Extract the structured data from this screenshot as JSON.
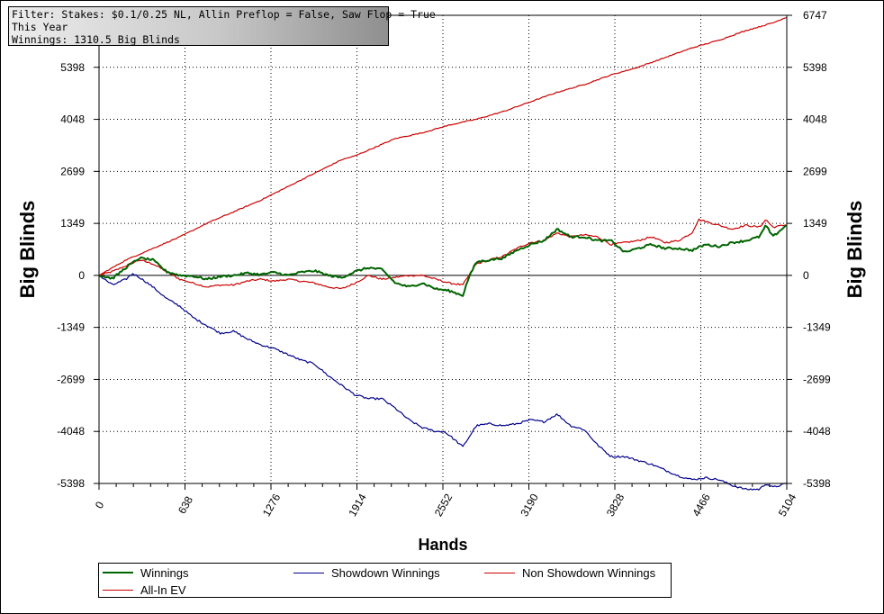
{
  "filter_box": {
    "line1": "Filter: Stakes: $0.1/0.25 NL, Allin Preflop = False, Saw Flop = True",
    "line2": "This Year",
    "line3": "Winnings: 1310.5 Big Blinds"
  },
  "legend": {
    "items": [
      {
        "label": "Winnings",
        "color": "#006400"
      },
      {
        "label": "Showdown Winnings",
        "color": "#00008b"
      },
      {
        "label": "Non Showdown Winnings",
        "color": "#cc0000"
      },
      {
        "label": "All-In EV",
        "color": "#cc0000"
      }
    ]
  },
  "chart_data": {
    "type": "line",
    "xlabel": "Hands",
    "ylabel": "Big Blinds",
    "xlim": [
      0,
      5104
    ],
    "ylim": [
      -5398,
      6747
    ],
    "x_ticks": [
      0,
      638,
      1276,
      1914,
      2552,
      3190,
      3828,
      4466,
      5104
    ],
    "y_ticks_left": [
      5398,
      4048,
      2699,
      1349,
      0,
      -1349,
      -2699,
      -4048,
      -5398
    ],
    "y_ticks_right": [
      6747,
      5398,
      4048,
      2699,
      1349,
      0,
      -1349,
      -2699,
      -4048,
      -5398
    ],
    "grid": true,
    "legend_position": "bottom",
    "series": [
      {
        "name": "Winnings",
        "color": "#006400",
        "x": [
          0,
          100,
          200,
          300,
          400,
          500,
          600,
          700,
          800,
          900,
          1000,
          1100,
          1200,
          1300,
          1400,
          1500,
          1600,
          1700,
          1800,
          1900,
          2000,
          2100,
          2200,
          2300,
          2400,
          2500,
          2600,
          2700,
          2740,
          2800,
          2900,
          3000,
          3100,
          3200,
          3300,
          3400,
          3500,
          3600,
          3700,
          3800,
          3900,
          4000,
          4100,
          4200,
          4300,
          4400,
          4500,
          4600,
          4700,
          4800,
          4900,
          4950,
          5000,
          5104
        ],
        "y": [
          0,
          -80,
          200,
          450,
          400,
          100,
          0,
          -20,
          -100,
          -30,
          0,
          60,
          20,
          80,
          0,
          80,
          120,
          0,
          -60,
          100,
          200,
          150,
          -200,
          -300,
          -200,
          -350,
          -400,
          -520,
          -100,
          350,
          400,
          450,
          650,
          800,
          900,
          1200,
          1000,
          1000,
          900,
          900,
          600,
          700,
          800,
          700,
          700,
          650,
          800,
          750,
          850,
          900,
          1000,
          1300,
          1000,
          1310
        ]
      },
      {
        "name": "Showdown Winnings",
        "color": "#00008b",
        "x": [
          0,
          100,
          200,
          250,
          300,
          400,
          500,
          600,
          650,
          700,
          800,
          900,
          1000,
          1100,
          1200,
          1300,
          1400,
          1500,
          1600,
          1700,
          1800,
          1900,
          2000,
          2100,
          2200,
          2300,
          2400,
          2500,
          2560,
          2600,
          2700,
          2800,
          2900,
          3000,
          3100,
          3200,
          3300,
          3400,
          3500,
          3600,
          3700,
          3800,
          3900,
          4000,
          4100,
          4200,
          4300,
          4400,
          4500,
          4600,
          4700,
          4800,
          4900,
          4950,
          5000,
          5104
        ],
        "y": [
          0,
          -250,
          -100,
          50,
          -50,
          -300,
          -600,
          -800,
          -950,
          -1100,
          -1300,
          -1500,
          -1450,
          -1650,
          -1800,
          -1900,
          -2050,
          -2200,
          -2300,
          -2600,
          -2850,
          -3100,
          -3200,
          -3200,
          -3450,
          -3750,
          -3950,
          -4050,
          -4050,
          -4150,
          -4450,
          -3900,
          -3850,
          -3900,
          -3850,
          -3750,
          -3800,
          -3600,
          -3900,
          -4000,
          -4400,
          -4700,
          -4700,
          -4800,
          -4900,
          -5050,
          -5200,
          -5300,
          -5250,
          -5300,
          -5450,
          -5550,
          -5550,
          -5400,
          -5500,
          -5400
        ]
      },
      {
        "name": "Non Showdown Winnings",
        "color": "#cc0000",
        "x": [
          0,
          100,
          200,
          300,
          400,
          500,
          600,
          700,
          800,
          900,
          1000,
          1100,
          1200,
          1300,
          1400,
          1500,
          1600,
          1700,
          1800,
          1900,
          2000,
          2100,
          2200,
          2300,
          2400,
          2500,
          2600,
          2700,
          2800,
          2900,
          3000,
          3100,
          3200,
          3300,
          3400,
          3500,
          3600,
          3700,
          3800,
          3900,
          4000,
          4100,
          4200,
          4300,
          4400,
          4450,
          4500,
          4600,
          4700,
          4800,
          4900,
          4950,
          5000,
          5104
        ],
        "y": [
          0,
          100,
          250,
          400,
          300,
          100,
          -100,
          -200,
          -300,
          -250,
          -250,
          -150,
          -100,
          -150,
          -100,
          -150,
          -200,
          -300,
          -350,
          -200,
          0,
          -100,
          -50,
          0,
          0,
          -100,
          -200,
          -250,
          300,
          400,
          500,
          700,
          850,
          900,
          1100,
          1000,
          1050,
          1000,
          800,
          850,
          900,
          1000,
          850,
          900,
          1100,
          1450,
          1400,
          1300,
          1200,
          1300,
          1250,
          1450,
          1250,
          1310
        ]
      },
      {
        "name": "All-In EV",
        "color": "#cc0000",
        "x": [
          0,
          200,
          400,
          600,
          800,
          1000,
          1200,
          1400,
          1600,
          1800,
          1900,
          2000,
          2200,
          2400,
          2600,
          2800,
          3000,
          3200,
          3400,
          3600,
          3800,
          4000,
          4200,
          4400,
          4600,
          4800,
          5000,
          5104
        ],
        "y": [
          0,
          400,
          700,
          1000,
          1350,
          1650,
          1950,
          2300,
          2650,
          3000,
          3100,
          3250,
          3550,
          3700,
          3900,
          4050,
          4250,
          4500,
          4750,
          4950,
          5200,
          5400,
          5650,
          5900,
          6100,
          6350,
          6550,
          6700
        ]
      }
    ]
  }
}
